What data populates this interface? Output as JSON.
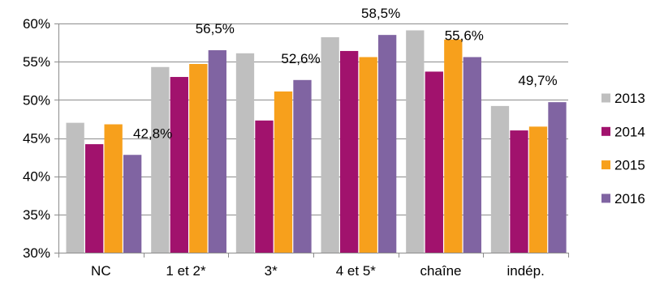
{
  "chart_data": {
    "type": "bar",
    "categories": [
      "NC",
      "1 et 2*",
      "3*",
      "4 et 5*",
      "chaîne",
      "indép."
    ],
    "series": [
      {
        "name": "2013",
        "color": "#BFBFBF",
        "values": [
          47.0,
          54.3,
          56.1,
          58.2,
          59.1,
          49.2
        ]
      },
      {
        "name": "2014",
        "color": "#A1126D",
        "values": [
          44.2,
          53.0,
          47.3,
          56.4,
          53.7,
          46.0
        ]
      },
      {
        "name": "2015",
        "color": "#F7A01C",
        "values": [
          46.8,
          54.7,
          51.1,
          55.6,
          57.9,
          46.5
        ]
      },
      {
        "name": "2016",
        "color": "#8064A2",
        "values": [
          42.8,
          56.5,
          52.6,
          58.5,
          55.6,
          49.7
        ]
      }
    ],
    "ylim": [
      30,
      60
    ],
    "yticks": [
      30,
      35,
      40,
      45,
      50,
      55,
      60
    ],
    "ytick_labels": [
      "30%",
      "35%",
      "40%",
      "45%",
      "50%",
      "55%",
      "60%"
    ],
    "data_labels": {
      "series": "2016",
      "labels": [
        "42,8%",
        "56,5%",
        "52,6%",
        "58,5%",
        "55,6%",
        "49,7%"
      ]
    },
    "grid": true,
    "legend": "right"
  }
}
